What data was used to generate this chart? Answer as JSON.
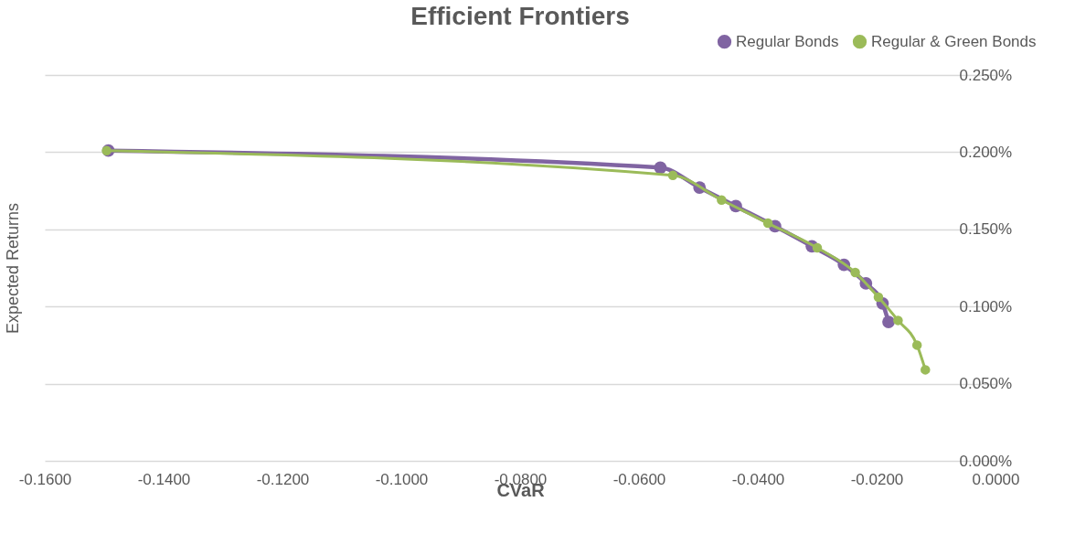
{
  "chart_data": {
    "type": "line",
    "title": "Efficient Frontiers",
    "xlabel": "CVaR",
    "ylabel": "Expected Returns",
    "series": [
      {
        "name": "Regular Bonds",
        "color": "#8064a2",
        "x": [
          -0.1493,
          -0.0564,
          -0.0498,
          -0.0437,
          -0.0371,
          -0.0309,
          -0.0255,
          -0.0218,
          -0.019,
          -0.018
        ],
        "values": [
          0.201,
          0.19,
          0.177,
          0.165,
          0.152,
          0.139,
          0.127,
          0.115,
          0.102,
          0.09
        ]
      },
      {
        "name": "Regular & Green Bonds",
        "color": "#9bbb59",
        "x": [
          -0.1496,
          -0.0543,
          -0.0461,
          -0.0383,
          -0.03,
          -0.0236,
          -0.0197,
          -0.0164,
          -0.0132,
          -0.0118
        ],
        "values": [
          0.201,
          0.185,
          0.169,
          0.154,
          0.138,
          0.122,
          0.106,
          0.091,
          0.075,
          0.059
        ]
      }
    ],
    "xlim": [
      -0.16,
      0
    ],
    "xticks": [
      {
        "value": -0.16,
        "label": "-0.1600"
      },
      {
        "value": -0.14,
        "label": "-0.1400"
      },
      {
        "value": -0.12,
        "label": "-0.1200"
      },
      {
        "value": -0.1,
        "label": "-0.1000"
      },
      {
        "value": -0.08,
        "label": "-0.0800"
      },
      {
        "value": -0.06,
        "label": "-0.0600"
      },
      {
        "value": -0.04,
        "label": "-0.0400"
      },
      {
        "value": -0.02,
        "label": "-0.0200"
      },
      {
        "value": 0,
        "label": "0.0000"
      }
    ],
    "ylim": [
      0,
      0.25
    ],
    "yticks": [
      {
        "value": 0,
        "label": "0.000%"
      },
      {
        "value": 0.05,
        "label": "0.050%"
      },
      {
        "value": 0.1,
        "label": "0.100%"
      },
      {
        "value": 0.15,
        "label": "0.150%"
      },
      {
        "value": 0.2,
        "label": "0.200%"
      },
      {
        "value": 0.25,
        "label": "0.250%"
      }
    ],
    "grid": "y",
    "legend": "top right",
    "marker": "circle",
    "line_style": "solid"
  }
}
